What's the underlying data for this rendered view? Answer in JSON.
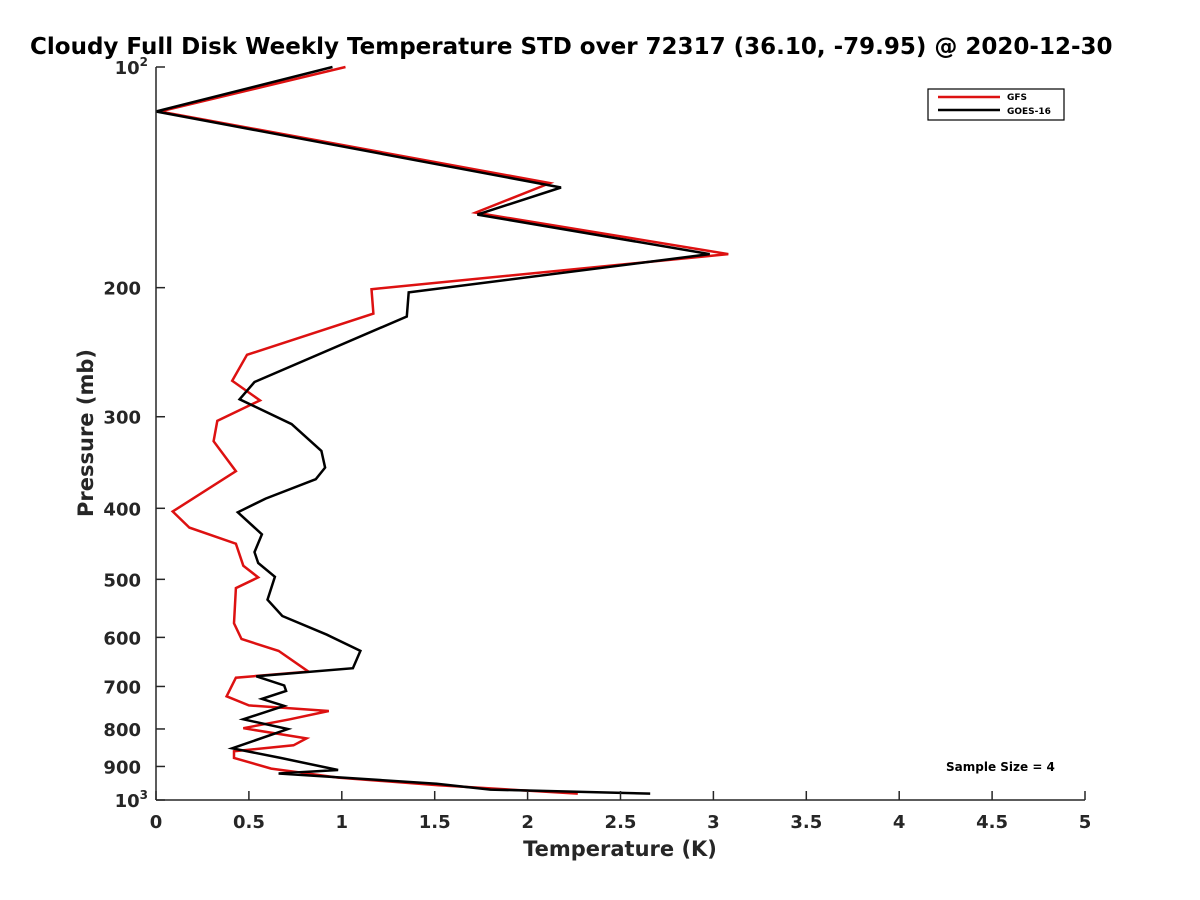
{
  "chart_data": {
    "type": "line",
    "title": "Cloudy Full Disk Weekly Temperature STD over 72317 (36.10, -79.95) @ 2020-12-30",
    "xlabel": "Temperature (K)",
    "ylabel": "Pressure (mb)",
    "xlim": [
      0,
      5
    ],
    "ylim": [
      100,
      1000
    ],
    "y_scale": "log",
    "y_reversed": true,
    "x_ticks": [
      0,
      0.5,
      1,
      1.5,
      2,
      2.5,
      3,
      3.5,
      4,
      4.5,
      5
    ],
    "x_tick_labels": [
      "0",
      "0.5",
      "1",
      "1.5",
      "2",
      "2.5",
      "3",
      "3.5",
      "4",
      "4.5",
      "5"
    ],
    "y_ticks": [
      {
        "value": 100,
        "base": "10",
        "exp": "2"
      },
      {
        "value": 200,
        "text": "200"
      },
      {
        "value": 300,
        "text": "300"
      },
      {
        "value": 400,
        "text": "400"
      },
      {
        "value": 500,
        "text": "500"
      },
      {
        "value": 600,
        "text": "600"
      },
      {
        "value": 700,
        "text": "700"
      },
      {
        "value": 800,
        "text": "800"
      },
      {
        "value": 900,
        "text": "900"
      },
      {
        "value": 1000,
        "base": "10",
        "exp": "3"
      }
    ],
    "grid": false,
    "legend_position": "top-right",
    "annotation": "Sample Size = 4",
    "series": [
      {
        "name": "GFS",
        "color": "#dd1111",
        "points": [
          [
            1.02,
            100
          ],
          [
            0.02,
            115
          ],
          [
            2.12,
            144
          ],
          [
            1.72,
            158
          ],
          [
            3.08,
            180
          ],
          [
            1.16,
            201
          ],
          [
            1.17,
            217
          ],
          [
            0.49,
            247
          ],
          [
            0.41,
            268
          ],
          [
            0.56,
            285
          ],
          [
            0.33,
            304
          ],
          [
            0.31,
            324
          ],
          [
            0.43,
            356
          ],
          [
            0.09,
            404
          ],
          [
            0.18,
            425
          ],
          [
            0.43,
            447
          ],
          [
            0.47,
            479
          ],
          [
            0.55,
            497
          ],
          [
            0.43,
            514
          ],
          [
            0.42,
            574
          ],
          [
            0.46,
            603
          ],
          [
            0.66,
            626
          ],
          [
            0.82,
            668
          ],
          [
            0.43,
            681
          ],
          [
            0.41,
            697
          ],
          [
            0.38,
            722
          ],
          [
            0.5,
            743
          ],
          [
            0.93,
            756
          ],
          [
            0.72,
            776
          ],
          [
            0.47,
            798
          ],
          [
            0.81,
            824
          ],
          [
            0.74,
            842
          ],
          [
            0.42,
            858
          ],
          [
            0.42,
            876
          ],
          [
            0.62,
            906
          ],
          [
            0.98,
            932
          ],
          [
            1.52,
            955
          ],
          [
            2.27,
            980
          ]
        ]
      },
      {
        "name": "GOES-16",
        "color": "#000000",
        "points": [
          [
            0.95,
            100
          ],
          [
            0.0,
            115
          ],
          [
            2.18,
            146
          ],
          [
            1.73,
            159
          ],
          [
            2.98,
            180
          ],
          [
            1.36,
            203
          ],
          [
            1.35,
            219
          ],
          [
            0.53,
            269
          ],
          [
            0.45,
            284
          ],
          [
            0.73,
            307
          ],
          [
            0.89,
            334
          ],
          [
            0.91,
            352
          ],
          [
            0.86,
            365
          ],
          [
            0.59,
            388
          ],
          [
            0.44,
            405
          ],
          [
            0.57,
            434
          ],
          [
            0.53,
            459
          ],
          [
            0.55,
            475
          ],
          [
            0.64,
            496
          ],
          [
            0.6,
            533
          ],
          [
            0.68,
            561
          ],
          [
            0.92,
            595
          ],
          [
            1.1,
            626
          ],
          [
            1.06,
            661
          ],
          [
            0.54,
            678
          ],
          [
            0.69,
            698
          ],
          [
            0.7,
            710
          ],
          [
            0.57,
            728
          ],
          [
            0.69,
            744
          ],
          [
            0.47,
            776
          ],
          [
            0.71,
            800
          ],
          [
            0.41,
            850
          ],
          [
            0.67,
            876
          ],
          [
            0.98,
            910
          ],
          [
            0.66,
            920
          ],
          [
            1.51,
            950
          ],
          [
            1.8,
            968
          ],
          [
            2.66,
            980
          ]
        ]
      }
    ]
  }
}
